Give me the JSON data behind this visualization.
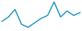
{
  "x": [
    0,
    1,
    2,
    3,
    4,
    5,
    6,
    7,
    8,
    9,
    10,
    11,
    12
  ],
  "y": [
    3.5,
    5.0,
    7.5,
    2.5,
    1.5,
    3.0,
    4.5,
    5.5,
    10.0,
    5.0,
    7.0,
    5.5,
    6.5
  ],
  "line_color": "#2196c4",
  "line_width": 1.2,
  "background_color": "#ffffff",
  "ylim_min": 0.5,
  "ylim_max": 10.5
}
